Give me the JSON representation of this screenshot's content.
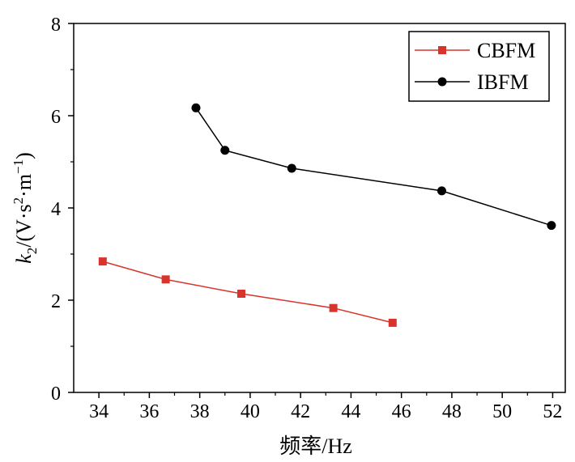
{
  "chart_data": {
    "type": "line",
    "xlabel": "频率/Hz",
    "ylabel": {
      "k": "k",
      "sub": "2",
      "rest": "/(V·s",
      "sup1": "2",
      "mid": "·m",
      "sup2": "−1",
      "close": ")"
    },
    "xlim": [
      33,
      52.5
    ],
    "ylim": [
      0,
      8
    ],
    "x_ticks": [
      "34",
      "36",
      "38",
      "40",
      "42",
      "44",
      "46",
      "48",
      "50",
      "52"
    ],
    "y_ticks": [
      "0",
      "2",
      "4",
      "6",
      "8"
    ],
    "legend_position": "top-right",
    "series": [
      {
        "name": "CBFM",
        "color": "#d9342b",
        "marker": "square",
        "x": [
          34.15,
          36.65,
          39.65,
          43.3,
          45.65
        ],
        "y": [
          2.84,
          2.45,
          2.14,
          1.83,
          1.51
        ]
      },
      {
        "name": "IBFM",
        "color": "#000000",
        "marker": "circle",
        "x": [
          37.85,
          39.0,
          41.65,
          47.6,
          51.95
        ],
        "y": [
          6.17,
          5.25,
          4.86,
          4.37,
          3.62
        ]
      }
    ]
  }
}
